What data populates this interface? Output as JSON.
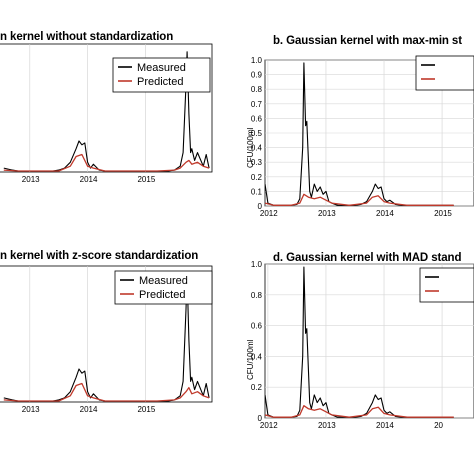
{
  "chart_data": [
    {
      "id": "a",
      "type": "line",
      "title": "n kernel without standardization",
      "ylabel": "",
      "x_ticks": [
        "2013",
        "2014",
        "2015"
      ],
      "y_ticks": [],
      "legend": {
        "placement": "top-right",
        "entries": [
          "Measured",
          "Predicted"
        ],
        "show_text": true
      },
      "series": [
        {
          "name": "Measured",
          "color": "#000000",
          "x": [
            2012.55,
            2012.7,
            2012.8,
            2012.9,
            2013.0,
            2013.1,
            2013.2,
            2013.3,
            2013.4,
            2013.5,
            2013.6,
            2013.7,
            2013.8,
            2013.85,
            2013.9,
            2013.95,
            2014.0,
            2014.05,
            2014.1,
            2014.2,
            2014.3,
            2014.4,
            2014.5,
            2014.6,
            2014.7,
            2014.8,
            2014.9,
            2015.0,
            2015.1,
            2015.2,
            2015.3,
            2015.4,
            2015.5,
            2015.6,
            2015.65,
            2015.7,
            2015.72,
            2015.75,
            2015.78,
            2015.8,
            2015.85,
            2015.9,
            2016.0,
            2016.05,
            2016.1
          ],
          "y": [
            0.02,
            0.01,
            0.005,
            0.005,
            0.005,
            0.005,
            0.005,
            0.005,
            0.005,
            0.01,
            0.02,
            0.05,
            0.12,
            0.16,
            0.14,
            0.15,
            0.05,
            0.02,
            0.04,
            0.01,
            0.005,
            0.005,
            0.005,
            0.005,
            0.005,
            0.005,
            0.005,
            0.005,
            0.005,
            0.005,
            0.005,
            0.005,
            0.01,
            0.03,
            0.1,
            0.45,
            0.62,
            0.3,
            0.1,
            0.12,
            0.06,
            0.1,
            0.03,
            0.09,
            0.02
          ]
        },
        {
          "name": "Predicted",
          "color": "#c0392b",
          "x": [
            2012.55,
            2012.8,
            2013.0,
            2013.3,
            2013.5,
            2013.7,
            2013.8,
            2013.9,
            2014.0,
            2014.1,
            2014.3,
            2014.6,
            2014.9,
            2015.2,
            2015.5,
            2015.6,
            2015.7,
            2015.75,
            2015.8,
            2015.9,
            2016.0,
            2016.1
          ],
          "y": [
            0.01,
            0.005,
            0.005,
            0.005,
            0.005,
            0.03,
            0.08,
            0.09,
            0.03,
            0.02,
            0.005,
            0.005,
            0.005,
            0.005,
            0.01,
            0.02,
            0.05,
            0.06,
            0.04,
            0.05,
            0.03,
            0.02
          ]
        }
      ]
    },
    {
      "id": "b",
      "type": "line",
      "title": "b. Gaussian kernel with max-min st",
      "ylabel": "CFU/100ml",
      "x_ticks": [
        "2012",
        "2013",
        "2014",
        "2015"
      ],
      "y_ticks": [
        "0",
        "0.1",
        "0.2",
        "0.3",
        "0.4",
        "0.5",
        "0.6",
        "0.7",
        "0.8",
        "0.9",
        "1.0"
      ],
      "ylim": [
        0,
        1.0
      ],
      "legend": {
        "placement": "top-right",
        "entries": [],
        "show_text": false
      },
      "series": [
        {
          "name": "",
          "color": "#000000",
          "x": [
            2011.95,
            2012.0,
            2012.1,
            2012.2,
            2012.3,
            2012.4,
            2012.5,
            2012.55,
            2012.6,
            2012.62,
            2012.65,
            2012.67,
            2012.7,
            2012.72,
            2012.75,
            2012.8,
            2012.85,
            2012.9,
            2012.95,
            2013.0,
            2013.05,
            2013.1,
            2013.2,
            2013.3,
            2013.4,
            2013.5,
            2013.6,
            2013.7,
            2013.8,
            2013.85,
            2013.9,
            2013.95,
            2014.0,
            2014.05,
            2014.1,
            2014.2,
            2014.3,
            2014.4,
            2014.6,
            2014.8,
            2015.0,
            2015.2
          ],
          "y": [
            0.15,
            0.02,
            0.005,
            0.005,
            0.005,
            0.005,
            0.01,
            0.05,
            0.4,
            0.98,
            0.55,
            0.58,
            0.3,
            0.1,
            0.06,
            0.15,
            0.1,
            0.13,
            0.08,
            0.1,
            0.03,
            0.02,
            0.005,
            0.005,
            0.005,
            0.005,
            0.01,
            0.03,
            0.1,
            0.15,
            0.12,
            0.13,
            0.05,
            0.03,
            0.04,
            0.01,
            0.005,
            0.005,
            0.005,
            0.005,
            0.005,
            0.005
          ]
        },
        {
          "name": "",
          "color": "#c0392b",
          "x": [
            2011.95,
            2012.1,
            2012.4,
            2012.55,
            2012.62,
            2012.7,
            2012.8,
            2012.9,
            2013.0,
            2013.1,
            2013.4,
            2013.7,
            2013.8,
            2013.9,
            2014.0,
            2014.1,
            2014.4,
            2014.8,
            2015.2
          ],
          "y": [
            0.02,
            0.005,
            0.005,
            0.02,
            0.08,
            0.06,
            0.05,
            0.06,
            0.04,
            0.02,
            0.005,
            0.02,
            0.06,
            0.07,
            0.03,
            0.02,
            0.005,
            0.005,
            0.005
          ]
        }
      ]
    },
    {
      "id": "c",
      "type": "line",
      "title": "n kernel with z-score standardization",
      "ylabel": "",
      "x_ticks": [
        "2013",
        "2014",
        "2015"
      ],
      "y_ticks": [],
      "legend": {
        "placement": "top-right",
        "entries": [
          "Measured",
          "Predicted"
        ],
        "show_text": true
      },
      "series": [
        {
          "name": "Measured",
          "color": "#000000",
          "x": [
            2012.55,
            2012.7,
            2012.8,
            2012.9,
            2013.0,
            2013.1,
            2013.2,
            2013.3,
            2013.4,
            2013.5,
            2013.6,
            2013.7,
            2013.8,
            2013.85,
            2013.9,
            2013.95,
            2014.0,
            2014.05,
            2014.1,
            2014.2,
            2014.3,
            2014.4,
            2014.5,
            2014.6,
            2014.7,
            2014.8,
            2014.9,
            2015.0,
            2015.1,
            2015.2,
            2015.3,
            2015.4,
            2015.5,
            2015.6,
            2015.65,
            2015.7,
            2015.72,
            2015.75,
            2015.78,
            2015.8,
            2015.85,
            2015.9,
            2016.0,
            2016.05,
            2016.1
          ],
          "y": [
            0.02,
            0.01,
            0.005,
            0.005,
            0.005,
            0.005,
            0.005,
            0.005,
            0.005,
            0.01,
            0.02,
            0.05,
            0.12,
            0.16,
            0.14,
            0.15,
            0.05,
            0.02,
            0.04,
            0.01,
            0.005,
            0.005,
            0.005,
            0.005,
            0.005,
            0.005,
            0.005,
            0.005,
            0.005,
            0.005,
            0.005,
            0.005,
            0.01,
            0.03,
            0.1,
            0.45,
            0.62,
            0.3,
            0.1,
            0.12,
            0.06,
            0.1,
            0.03,
            0.09,
            0.02
          ]
        },
        {
          "name": "Predicted",
          "color": "#c0392b",
          "x": [
            2012.55,
            2012.8,
            2013.0,
            2013.3,
            2013.5,
            2013.7,
            2013.8,
            2013.9,
            2014.0,
            2014.1,
            2014.3,
            2014.6,
            2014.9,
            2015.2,
            2015.5,
            2015.6,
            2015.7,
            2015.75,
            2015.8,
            2015.9,
            2016.0,
            2016.1
          ],
          "y": [
            0.01,
            0.005,
            0.005,
            0.005,
            0.005,
            0.03,
            0.08,
            0.09,
            0.03,
            0.02,
            0.005,
            0.005,
            0.005,
            0.005,
            0.01,
            0.02,
            0.05,
            0.07,
            0.04,
            0.05,
            0.03,
            0.02
          ]
        }
      ]
    },
    {
      "id": "d",
      "type": "line",
      "title": "d. Gaussian kernel with MAD stand",
      "ylabel": "CFU/100ml",
      "x_ticks": [
        "2012",
        "2013",
        "2014",
        "20"
      ],
      "y_ticks": [
        "0",
        "0.2",
        "0.4",
        "0.6",
        "0.8",
        "1.0"
      ],
      "ylim": [
        0,
        1.0
      ],
      "legend": {
        "placement": "top-right",
        "entries": [],
        "show_text": false
      },
      "series": [
        {
          "name": "",
          "color": "#000000",
          "x": [
            2011.95,
            2012.0,
            2012.1,
            2012.2,
            2012.3,
            2012.4,
            2012.5,
            2012.55,
            2012.6,
            2012.62,
            2012.65,
            2012.67,
            2012.7,
            2012.72,
            2012.75,
            2012.8,
            2012.85,
            2012.9,
            2012.95,
            2013.0,
            2013.05,
            2013.1,
            2013.2,
            2013.3,
            2013.4,
            2013.5,
            2013.6,
            2013.7,
            2013.8,
            2013.85,
            2013.9,
            2013.95,
            2014.0,
            2014.05,
            2014.1,
            2014.2,
            2014.3,
            2014.4,
            2014.6,
            2014.8,
            2015.0,
            2015.2
          ],
          "y": [
            0.15,
            0.02,
            0.005,
            0.005,
            0.005,
            0.005,
            0.01,
            0.05,
            0.4,
            0.98,
            0.55,
            0.58,
            0.3,
            0.1,
            0.06,
            0.15,
            0.1,
            0.13,
            0.08,
            0.1,
            0.03,
            0.02,
            0.005,
            0.005,
            0.005,
            0.005,
            0.01,
            0.03,
            0.1,
            0.15,
            0.12,
            0.13,
            0.05,
            0.03,
            0.04,
            0.01,
            0.005,
            0.005,
            0.005,
            0.005,
            0.005,
            0.005
          ]
        },
        {
          "name": "",
          "color": "#c0392b",
          "x": [
            2011.95,
            2012.1,
            2012.4,
            2012.55,
            2012.62,
            2012.7,
            2012.8,
            2012.9,
            2013.0,
            2013.1,
            2013.4,
            2013.7,
            2013.8,
            2013.9,
            2014.0,
            2014.1,
            2014.4,
            2014.8,
            2015.2
          ],
          "y": [
            0.02,
            0.005,
            0.005,
            0.02,
            0.08,
            0.06,
            0.05,
            0.06,
            0.04,
            0.02,
            0.005,
            0.02,
            0.06,
            0.07,
            0.03,
            0.02,
            0.005,
            0.005,
            0.005
          ]
        }
      ]
    }
  ]
}
